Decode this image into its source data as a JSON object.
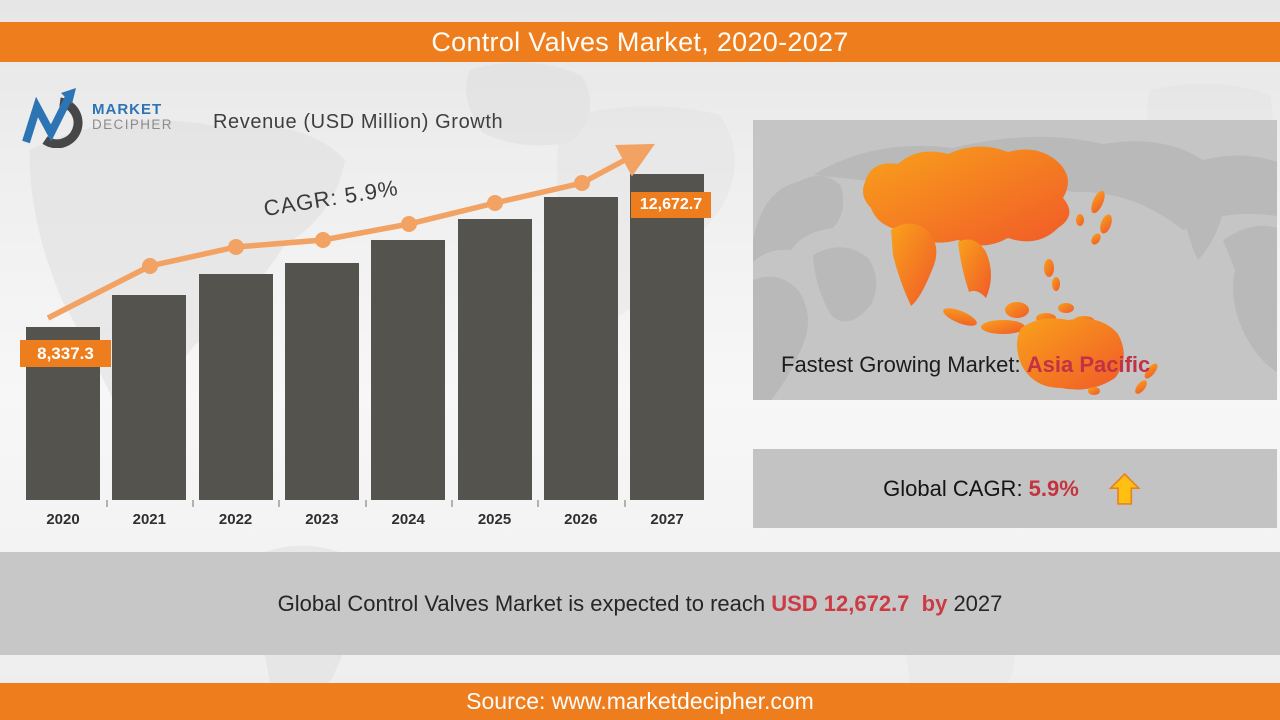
{
  "slide": {
    "title": "Control Valves Market, 2020-2027",
    "source": "Source: www.marketdecipher.com"
  },
  "logo": {
    "brand_top": "MARKET",
    "brand_bottom": "DECIPHER"
  },
  "chart_data": {
    "type": "bar",
    "title": "Revenue (USD Million) Growth",
    "categories": [
      "2020",
      "2021",
      "2022",
      "2023",
      "2024",
      "2025",
      "2026",
      "2027"
    ],
    "values": [
      8337.3,
      9240,
      9840,
      10150,
      10800,
      11400,
      12030,
      12672.7
    ],
    "values_note": "only 2020 and 2027 are labeled on chart; intermediate values estimated from bar heights",
    "callout_start": "8,337.3",
    "callout_end": "12,672.7",
    "cagr_label": "CAGR: 5.9%",
    "xlabel": "",
    "ylabel": "Revenue (USD Million)",
    "ylim": [
      3400,
      12800
    ],
    "grid": false,
    "legend": "none",
    "bar_color": "#54534d",
    "trend_line_color": "#f2a263",
    "callout_color": "#ee7d1e"
  },
  "map_panel": {
    "caption_prefix": "Fastest Growing Market: ",
    "caption_highlight": "Asia Pacific",
    "highlight_region": "Asia Pacific",
    "highlight_colors": [
      "#f9a11b",
      "#f05a28"
    ],
    "land_color": "#b9b9b9",
    "panel_color": "#c5c5c5"
  },
  "cagr_panel": {
    "label_prefix": "Global CAGR: ",
    "value": "5.9%",
    "arrow_direction": "up",
    "arrow_color": "#ffc013"
  },
  "banner": {
    "prefix": "Global Control Valves Market is expected to reach ",
    "highlight": "USD 12,672.7  by ",
    "suffix": "2027"
  },
  "colors": {
    "accent_orange": "#ee7d1e",
    "red_text": "#c5333f",
    "gray_panel": "#c5c5c5"
  }
}
